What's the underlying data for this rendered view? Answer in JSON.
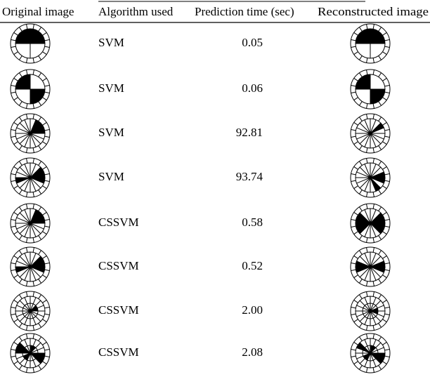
{
  "table": {
    "header": [
      "Original image",
      "Algorithm used",
      "Prediction time (sec)",
      "Reconstructed image"
    ],
    "rows": [
      [
        "SVM",
        "0.05"
      ],
      [
        "SVM",
        "0.06"
      ],
      [
        "SVM",
        "92.81"
      ],
      [
        "SVM",
        "93.74"
      ],
      [
        "CSSVM",
        "0.58"
      ],
      [
        "CSSVM",
        "0.52"
      ],
      [
        "CSSVM",
        "2.00"
      ],
      [
        "CSSVM",
        "2.08"
      ]
    ]
  }
}
